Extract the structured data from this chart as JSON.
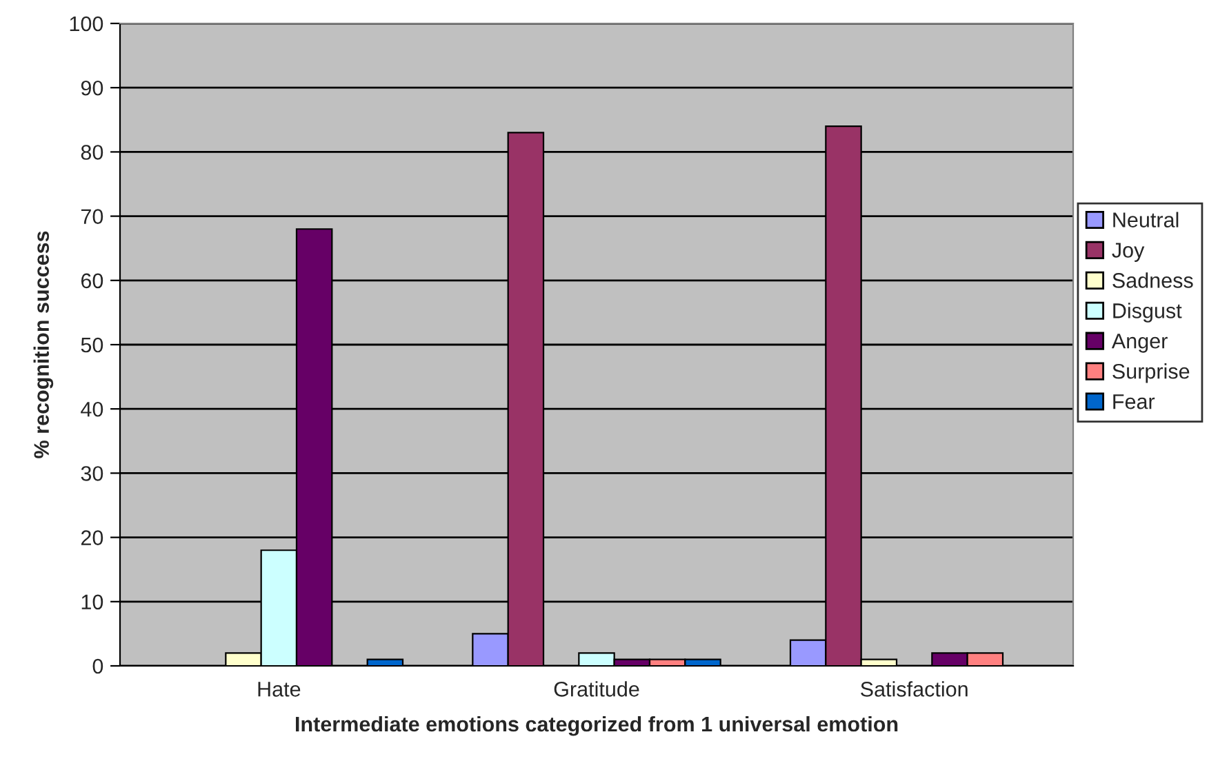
{
  "chart_data": {
    "type": "bar",
    "xlabel": "Intermediate emotions categorized from 1 universal emotion",
    "ylabel": "% recognition success",
    "categories": [
      "Hate",
      "Gratitude",
      "Satisfaction"
    ],
    "series": [
      {
        "name": "Neutral",
        "color": "#9999ff",
        "values": [
          0,
          5,
          4
        ]
      },
      {
        "name": "Joy",
        "color": "#993366",
        "values": [
          0,
          83,
          84
        ]
      },
      {
        "name": "Sadness",
        "color": "#ffffcc",
        "values": [
          2,
          0,
          1
        ]
      },
      {
        "name": "Disgust",
        "color": "#ccffff",
        "values": [
          18,
          2,
          0
        ]
      },
      {
        "name": "Anger",
        "color": "#660066",
        "values": [
          68,
          1,
          2
        ]
      },
      {
        "name": "Surprise",
        "color": "#ff8080",
        "values": [
          0,
          1,
          2
        ]
      },
      {
        "name": "Fear",
        "color": "#0066cc",
        "values": [
          1,
          1,
          0
        ]
      }
    ],
    "ylim": [
      0,
      100
    ],
    "yticks": [
      0,
      10,
      20,
      30,
      40,
      50,
      60,
      70,
      80,
      90,
      100
    ],
    "grid": "y",
    "legend": "right"
  }
}
